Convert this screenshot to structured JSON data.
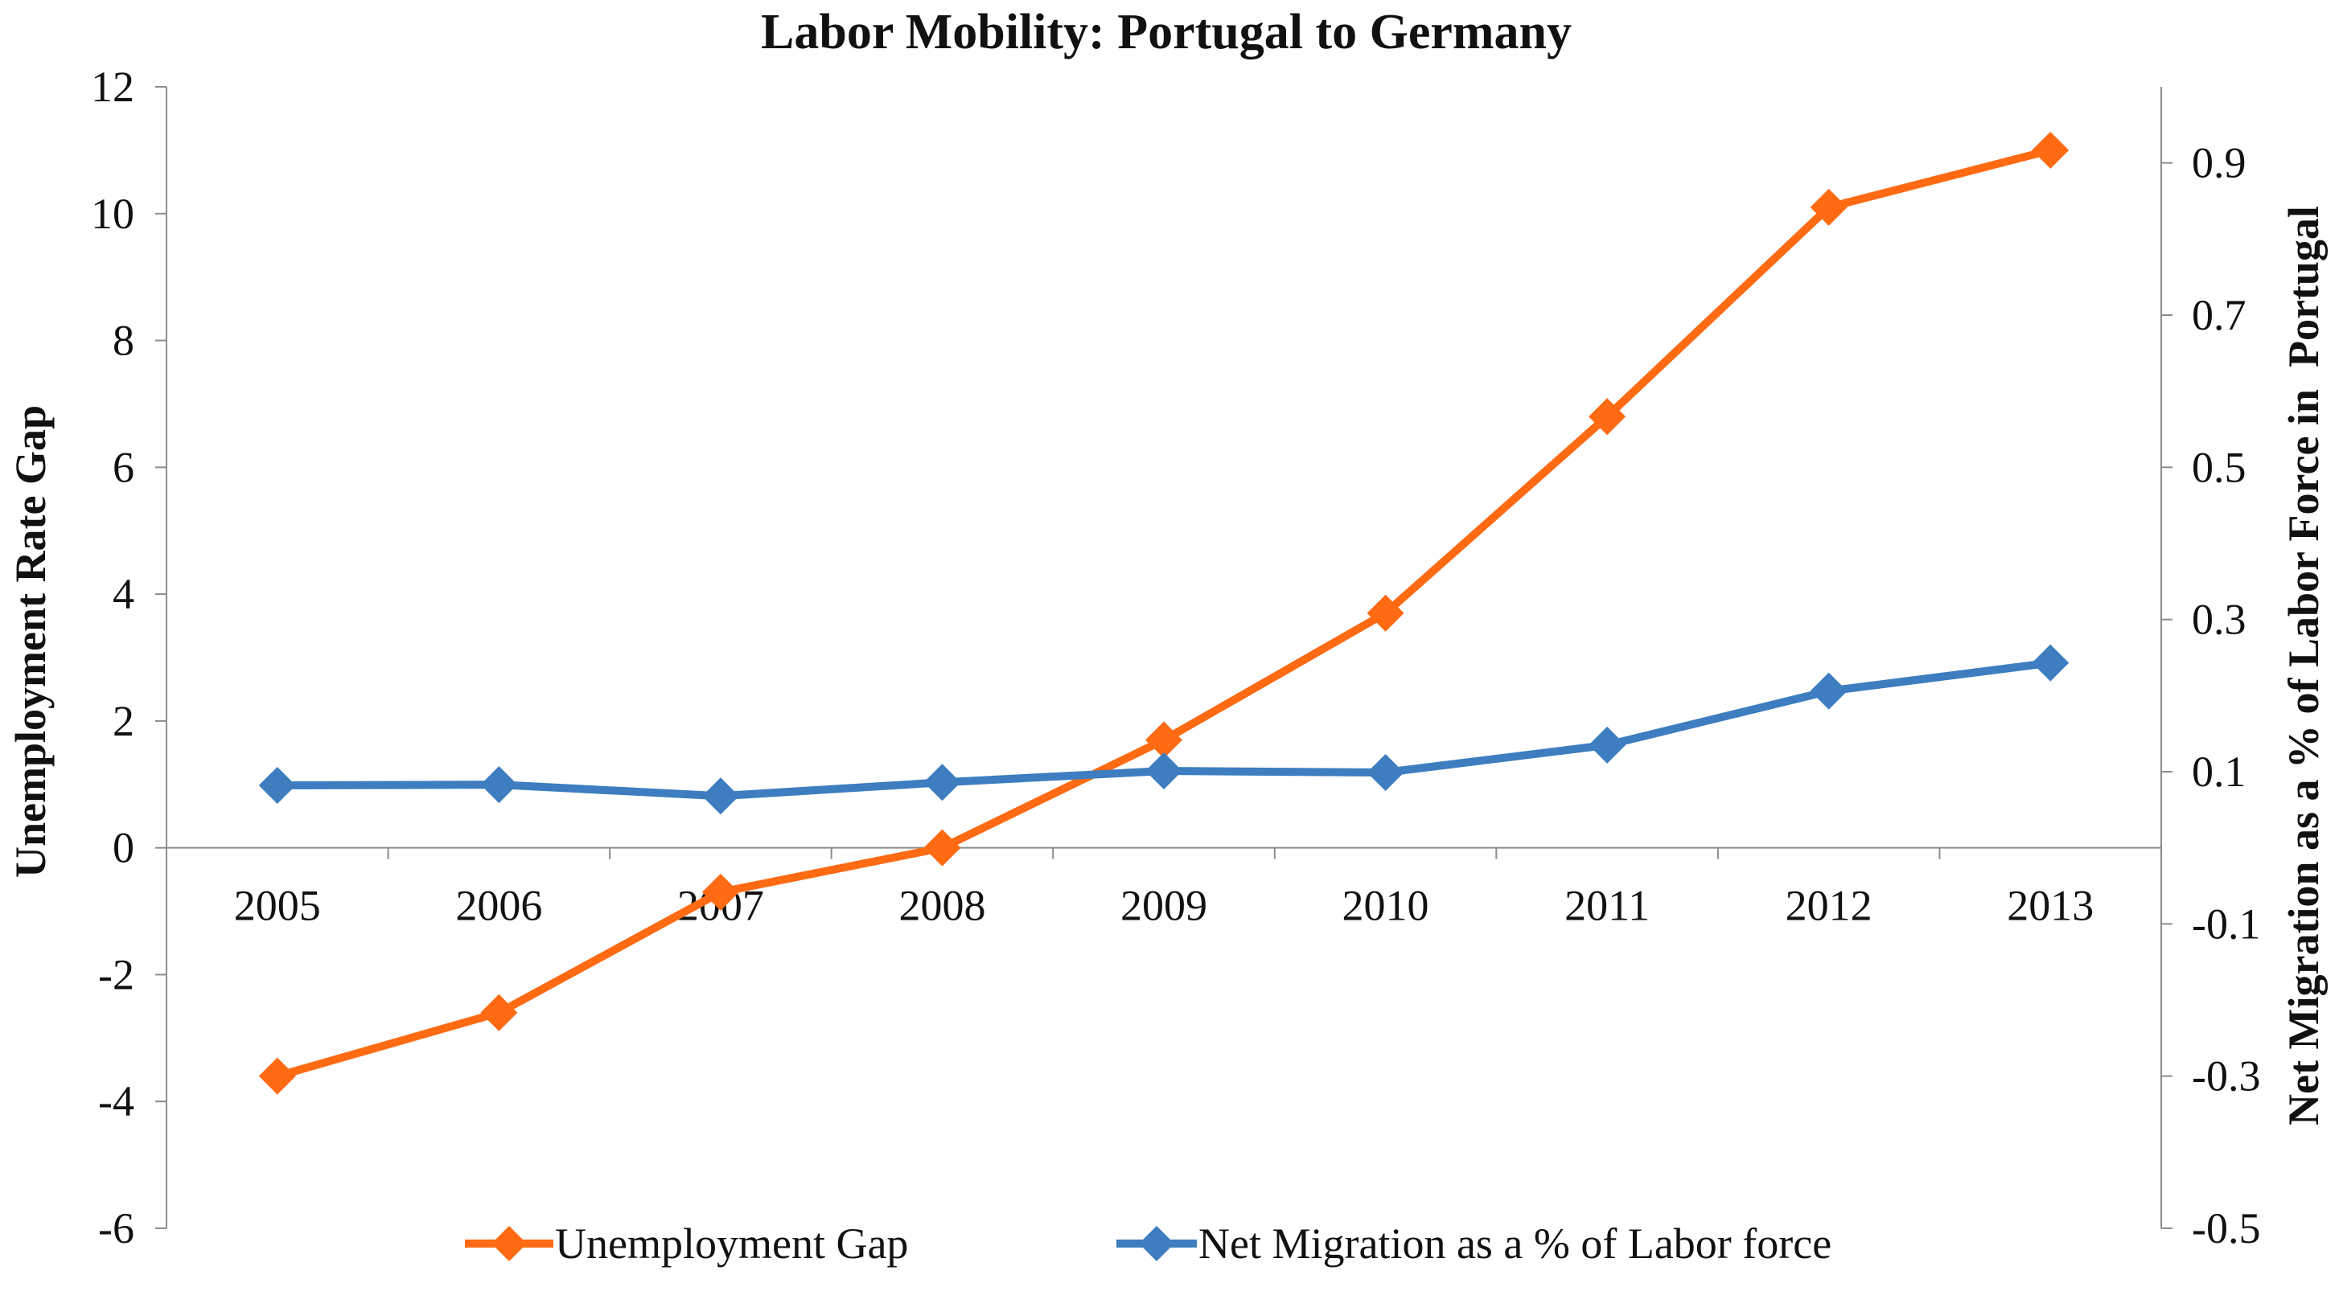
{
  "chart_data": {
    "type": "line",
    "title": "Labor Mobility: Portugal to Germany",
    "categories": [
      "2005",
      "2006",
      "2007",
      "2008",
      "2009",
      "2010",
      "2011",
      "2012",
      "2013"
    ],
    "y_left": {
      "label": "Unemployment Rate Gap",
      "range": [
        -6,
        12
      ],
      "ticks": [
        12,
        10,
        8,
        6,
        4,
        2,
        0,
        -2,
        -4,
        -6
      ],
      "tick_labels": [
        "12",
        "10",
        "8",
        "6",
        "4",
        "2",
        "0",
        "-2",
        "-4",
        "-6"
      ]
    },
    "y_right": {
      "label": "Net Migration as a % of Labor Force in  Portugal",
      "range": [
        -0.5,
        1.0
      ],
      "ticks": [
        0.9,
        0.7,
        0.5,
        0.3,
        0.1,
        -0.1,
        -0.3,
        -0.5
      ],
      "tick_labels": [
        "0.9",
        "0.7",
        "0.5",
        "0.3",
        "0.1",
        "-0.1",
        "-0.3",
        "-0.5"
      ]
    },
    "series": [
      {
        "name": "Unemployment Gap",
        "axis": "left",
        "color": "#FF6A13",
        "values": [
          -3.6,
          -2.6,
          -0.7,
          0.0,
          1.7,
          3.7,
          6.8,
          10.1,
          11.0
        ]
      },
      {
        "name": "Net Migration as a % of Labor force",
        "axis": "right",
        "color": "#3D7DC0",
        "values": [
          0.082,
          0.083,
          0.068,
          0.086,
          0.101,
          0.099,
          0.135,
          0.206,
          0.243
        ]
      }
    ],
    "legend_position": "bottom",
    "grid": false
  }
}
